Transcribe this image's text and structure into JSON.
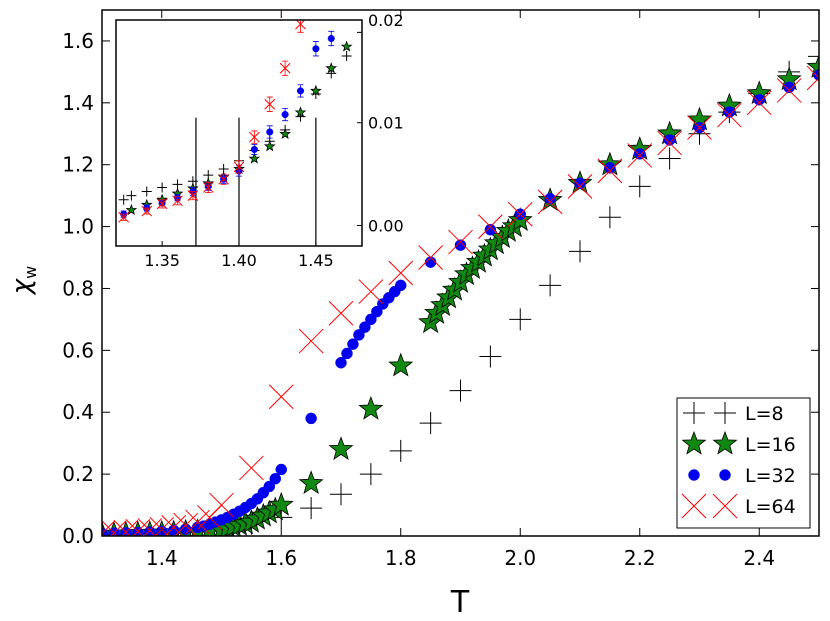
{
  "chart_data": {
    "type": "scatter",
    "main": {
      "xlabel": "T",
      "ylabel": "χw",
      "ylabel_main": "χ",
      "ylabel_sub": "w",
      "xlim": [
        1.3,
        2.5
      ],
      "ylim": [
        0.0,
        1.7
      ],
      "xticks": [
        1.4,
        1.6,
        1.8,
        2.0,
        2.2,
        2.4
      ],
      "xtick_labels": [
        "1.4",
        "1.6",
        "1.8",
        "2.0",
        "2.2",
        "2.4"
      ],
      "yticks": [
        0.0,
        0.2,
        0.4,
        0.6,
        0.8,
        1.0,
        1.2,
        1.4,
        1.6
      ],
      "ytick_labels": [
        "0.0",
        "0.2",
        "0.4",
        "0.6",
        "0.8",
        "1.0",
        "1.2",
        "1.4",
        "1.6"
      ],
      "legend_position": "lower-right",
      "series": [
        {
          "name": "L=8",
          "label": "L=8",
          "marker": "plus",
          "color": "#000000",
          "x": [
            1.3,
            1.32,
            1.34,
            1.36,
            1.38,
            1.4,
            1.42,
            1.44,
            1.46,
            1.48,
            1.5,
            1.55,
            1.6,
            1.65,
            1.7,
            1.75,
            1.8,
            1.85,
            1.9,
            1.95,
            2.0,
            2.05,
            2.1,
            2.15,
            2.2,
            2.25,
            2.3,
            2.35,
            2.4,
            2.45,
            2.5
          ],
          "y": [
            0.005,
            0.006,
            0.007,
            0.008,
            0.009,
            0.01,
            0.012,
            0.014,
            0.017,
            0.02,
            0.025,
            0.04,
            0.06,
            0.09,
            0.135,
            0.2,
            0.275,
            0.365,
            0.47,
            0.58,
            0.7,
            0.81,
            0.92,
            1.03,
            1.13,
            1.22,
            1.3,
            1.37,
            1.43,
            1.5,
            1.55
          ]
        },
        {
          "name": "L=16",
          "label": "L=16",
          "marker": "star",
          "color": "#118811",
          "x": [
            1.3,
            1.32,
            1.34,
            1.36,
            1.38,
            1.4,
            1.42,
            1.44,
            1.46,
            1.48,
            1.5,
            1.51,
            1.52,
            1.53,
            1.54,
            1.55,
            1.56,
            1.57,
            1.58,
            1.59,
            1.6,
            1.65,
            1.7,
            1.75,
            1.8,
            1.85,
            1.86,
            1.87,
            1.88,
            1.89,
            1.9,
            1.91,
            1.92,
            1.93,
            1.94,
            1.95,
            1.96,
            1.97,
            1.98,
            1.99,
            2.0,
            2.05,
            2.1,
            2.15,
            2.2,
            2.25,
            2.3,
            2.35,
            2.4,
            2.45,
            2.5
          ],
          "y": [
            0.005,
            0.006,
            0.007,
            0.008,
            0.009,
            0.01,
            0.011,
            0.013,
            0.015,
            0.017,
            0.02,
            0.025,
            0.03,
            0.035,
            0.04,
            0.045,
            0.055,
            0.065,
            0.075,
            0.085,
            0.1,
            0.17,
            0.28,
            0.41,
            0.55,
            0.69,
            0.72,
            0.745,
            0.77,
            0.795,
            0.82,
            0.845,
            0.865,
            0.885,
            0.905,
            0.925,
            0.945,
            0.965,
            0.985,
            1.0,
            1.02,
            1.085,
            1.14,
            1.2,
            1.25,
            1.3,
            1.345,
            1.39,
            1.43,
            1.475,
            1.515
          ]
        },
        {
          "name": "L=32",
          "label": "L=32",
          "marker": "circle",
          "color": "#0000ee",
          "x": [
            1.3,
            1.32,
            1.34,
            1.36,
            1.38,
            1.4,
            1.42,
            1.44,
            1.46,
            1.47,
            1.48,
            1.49,
            1.5,
            1.51,
            1.52,
            1.53,
            1.54,
            1.55,
            1.56,
            1.57,
            1.58,
            1.59,
            1.6,
            1.65,
            1.7,
            1.71,
            1.72,
            1.73,
            1.74,
            1.75,
            1.76,
            1.77,
            1.78,
            1.79,
            1.8,
            1.85,
            1.9,
            1.95,
            2.0,
            2.05,
            2.1,
            2.15,
            2.2,
            2.25,
            2.3,
            2.35,
            2.4,
            2.45,
            2.5
          ],
          "y": [
            0.008,
            0.009,
            0.01,
            0.011,
            0.013,
            0.015,
            0.018,
            0.022,
            0.028,
            0.032,
            0.038,
            0.045,
            0.052,
            0.06,
            0.07,
            0.08,
            0.092,
            0.105,
            0.12,
            0.14,
            0.16,
            0.185,
            0.215,
            0.38,
            0.56,
            0.59,
            0.62,
            0.65,
            0.675,
            0.7,
            0.725,
            0.75,
            0.77,
            0.79,
            0.81,
            0.885,
            0.94,
            0.99,
            1.04,
            1.09,
            1.14,
            1.19,
            1.235,
            1.28,
            1.32,
            1.37,
            1.41,
            1.45,
            1.49
          ]
        },
        {
          "name": "L=64",
          "label": "L=64",
          "marker": "cross",
          "color": "#ff0000",
          "x": [
            1.3,
            1.32,
            1.34,
            1.36,
            1.38,
            1.4,
            1.42,
            1.44,
            1.46,
            1.48,
            1.5,
            1.55,
            1.6,
            1.65,
            1.7,
            1.75,
            1.8,
            1.85,
            1.9,
            1.95,
            2.0,
            2.05,
            2.1,
            2.15,
            2.2,
            2.25,
            2.3,
            2.35,
            2.4,
            2.45,
            2.5
          ],
          "y": [
            0.008,
            0.01,
            0.012,
            0.015,
            0.018,
            0.022,
            0.028,
            0.035,
            0.045,
            0.06,
            0.1,
            0.22,
            0.45,
            0.63,
            0.72,
            0.79,
            0.85,
            0.9,
            0.95,
            1.0,
            1.04,
            1.08,
            1.13,
            1.18,
            1.23,
            1.27,
            1.32,
            1.36,
            1.4,
            1.44,
            1.48
          ]
        }
      ]
    },
    "inset": {
      "xlim": [
        1.32,
        1.48
      ],
      "ylim": [
        -0.002,
        0.02
      ],
      "xticks": [
        1.35,
        1.4,
        1.45
      ],
      "xtick_labels": [
        "1.35",
        "1.40",
        "1.45"
      ],
      "yticks": [
        0.0,
        0.01,
        0.02
      ],
      "ytick_labels": [
        "0.00",
        "0.01",
        "0.02"
      ],
      "vlines": [
        1.372,
        1.4,
        1.45
      ],
      "series": [
        {
          "name": "L=8",
          "marker": "plus",
          "color": "#000000",
          "x": [
            1.325,
            1.33,
            1.34,
            1.35,
            1.36,
            1.37,
            1.38,
            1.39,
            1.4,
            1.41,
            1.42,
            1.43,
            1.44,
            1.45,
            1.46,
            1.47,
            1.48
          ],
          "y": [
            0.0025,
            0.0029,
            0.0033,
            0.0037,
            0.004,
            0.0043,
            0.0049,
            0.0055,
            0.0063,
            0.0073,
            0.0082,
            0.0093,
            0.0106,
            0.0128,
            0.0148,
            0.0165,
            0.0188
          ]
        },
        {
          "name": "L=16",
          "marker": "star",
          "color": "#118811",
          "x": [
            1.33,
            1.34,
            1.35,
            1.36,
            1.37,
            1.38,
            1.39,
            1.4,
            1.41,
            1.42,
            1.43,
            1.44,
            1.45,
            1.46,
            1.47
          ],
          "y": [
            0.0015,
            0.002,
            0.0025,
            0.0031,
            0.0036,
            0.0041,
            0.0047,
            0.0055,
            0.0065,
            0.0077,
            0.0089,
            0.011,
            0.0131,
            0.0153,
            0.0174
          ]
        },
        {
          "name": "L=32",
          "marker": "circle",
          "color": "#0000ee",
          "x": [
            1.325,
            1.34,
            1.35,
            1.36,
            1.37,
            1.38,
            1.39,
            1.4,
            1.41,
            1.42,
            1.43,
            1.44,
            1.45,
            1.46
          ],
          "y": [
            0.0011,
            0.0017,
            0.0022,
            0.0027,
            0.0033,
            0.0038,
            0.0045,
            0.0053,
            0.0074,
            0.0091,
            0.0108,
            0.0131,
            0.0172,
            0.0182
          ],
          "err": [
            0.0003,
            0.0003,
            0.0003,
            0.0003,
            0.0004,
            0.0004,
            0.0004,
            0.0005,
            0.0005,
            0.0006,
            0.0006,
            0.0006,
            0.0007,
            0.0007
          ]
        },
        {
          "name": "L=64",
          "marker": "cross",
          "color": "#ff0000",
          "x": [
            1.325,
            1.34,
            1.35,
            1.36,
            1.37,
            1.38,
            1.39,
            1.4,
            1.41,
            1.42,
            1.43,
            1.44
          ],
          "y": [
            0.0008,
            0.0014,
            0.0021,
            0.0024,
            0.0029,
            0.0037,
            0.0045,
            0.0057,
            0.0086,
            0.0118,
            0.0153,
            0.0196
          ],
          "err": [
            0.0003,
            0.0003,
            0.0004,
            0.0004,
            0.0004,
            0.0005,
            0.0005,
            0.0006,
            0.0006,
            0.0007,
            0.0007,
            0.0008
          ]
        }
      ]
    }
  }
}
